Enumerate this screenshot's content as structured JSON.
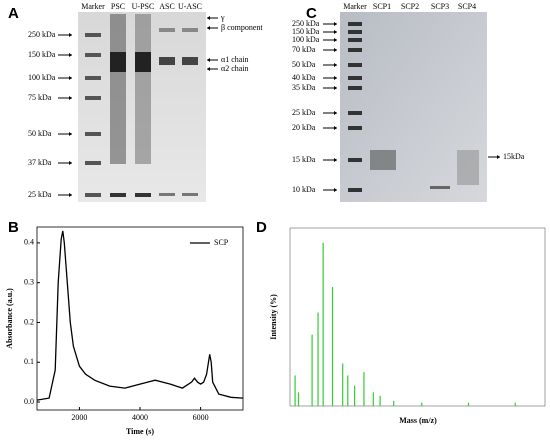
{
  "panel_a": {
    "label": "A",
    "lanes": [
      "Marker",
      "PSC",
      "U-PSC",
      "ASC",
      "U-ASC"
    ],
    "markers": [
      "250 kDa",
      "150 kDa",
      "100 kDa",
      "75 kDa",
      "50 kDa",
      "37 kDa",
      "25 kDa"
    ],
    "annotations": [
      "γ",
      "β component",
      "α1 chain",
      "α2 chain"
    ]
  },
  "panel_c": {
    "label": "C",
    "lanes": [
      "Marker",
      "SCP1",
      "SCP2",
      "SCP3",
      "SCP4"
    ],
    "markers": [
      "250 kDa",
      "150 kDa",
      "100 kDa",
      "70 kDa",
      "50 kDa",
      "40 kDa",
      "35 kDa",
      "25 kDa",
      "20 kDa",
      "15 kDa",
      "10 kDa"
    ],
    "annotation": "15kDa"
  },
  "chart_data": [
    {
      "type": "line",
      "panel_label": "B",
      "xlabel": "Time (s)",
      "ylabel": "Absorbance (a.u.)",
      "xlim": [
        600,
        7400
      ],
      "ylim": [
        -0.02,
        0.44
      ],
      "xticks": [
        2000,
        4000,
        6000
      ],
      "yticks": [
        {
          "value": 0,
          "label": "0.0"
        },
        0.1,
        0.2,
        0.3,
        0.4
      ],
      "series": [
        {
          "name": "SCP",
          "color": "#000000"
        }
      ],
      "x": [
        600,
        1000,
        1200,
        1300,
        1400,
        1450,
        1500,
        1600,
        1700,
        1800,
        2000,
        2200,
        2500,
        3000,
        3500,
        4000,
        4500,
        5000,
        5400,
        5700,
        5800,
        5900,
        6000,
        6100,
        6200,
        6300,
        6350,
        6400,
        6600,
        7000,
        7400
      ],
      "y": [
        0.005,
        0.01,
        0.08,
        0.3,
        0.41,
        0.43,
        0.4,
        0.3,
        0.2,
        0.14,
        0.09,
        0.07,
        0.055,
        0.04,
        0.035,
        0.045,
        0.055,
        0.045,
        0.035,
        0.05,
        0.06,
        0.05,
        0.045,
        0.05,
        0.07,
        0.12,
        0.1,
        0.05,
        0.02,
        0.012,
        0.01
      ]
    },
    {
      "type": "spectrum",
      "panel_label": "D",
      "xlabel": "Mass (m/z)",
      "ylabel": "Intensity (%)",
      "xlim": [
        1500,
        4500
      ],
      "ylim": [
        0,
        100
      ],
      "color": "#33cc33",
      "x": [
        1560,
        1600,
        1760,
        1830,
        1890,
        2000,
        2120,
        2180,
        2260,
        2370,
        2480,
        2560,
        2720,
        3050,
        3600,
        4150
      ],
      "values": [
        18,
        8,
        42,
        55,
        96,
        70,
        25,
        18,
        12,
        20,
        8,
        6,
        3,
        2,
        2,
        2
      ]
    }
  ]
}
